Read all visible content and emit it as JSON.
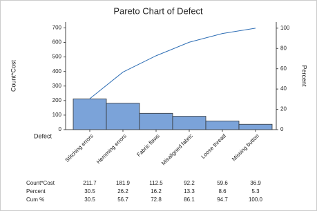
{
  "chart_data": {
    "type": "pareto",
    "title": "Pareto Chart of Defect",
    "xlabel": "Defect",
    "ylabel": "Count*Cost",
    "y2label": "Percent",
    "categories": [
      "Stitching errors",
      "Hemming errors",
      "Fabric flaws",
      "Misaligned fabric",
      "Loose thread",
      "Missing button"
    ],
    "series": [
      {
        "name": "Count*Cost",
        "color": "#7ba3d9",
        "values": [
          211.7,
          181.9,
          112.5,
          92.2,
          59.6,
          36.9
        ]
      },
      {
        "name": "Percent",
        "values": [
          30.5,
          26.2,
          16.2,
          13.3,
          8.6,
          5.3
        ]
      },
      {
        "name": "Cum %",
        "color": "#2e6eb5",
        "axis": "y2",
        "values": [
          30.5,
          56.7,
          72.8,
          86.1,
          94.7,
          100
        ],
        "value_labels": [
          "30.5",
          "56.7",
          "72.8",
          "86.1",
          "94.7",
          "100.0"
        ]
      }
    ],
    "ylim": [
      0,
      740
    ],
    "yticks": [
      0,
      100,
      200,
      300,
      400,
      500,
      600,
      700
    ],
    "y2lim": [
      0,
      106
    ],
    "y2ticks": [
      0,
      20,
      40,
      60,
      80,
      100
    ]
  }
}
